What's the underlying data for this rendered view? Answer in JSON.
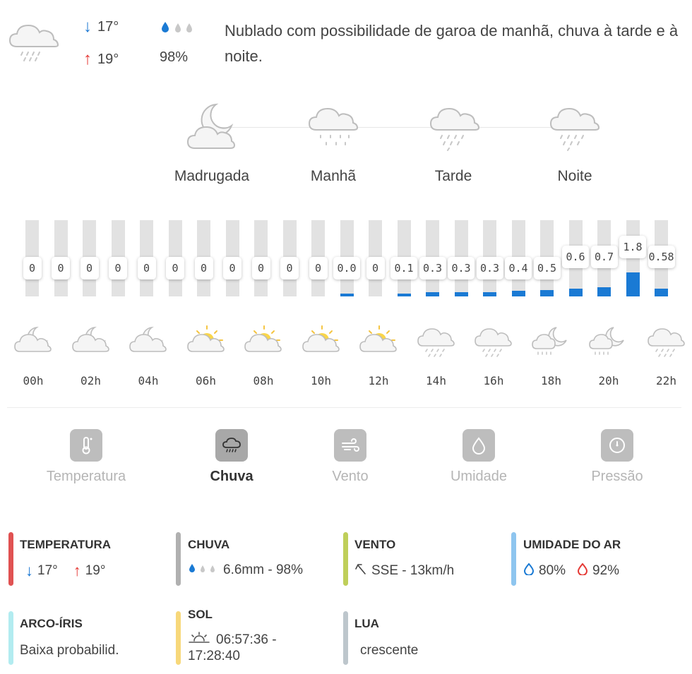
{
  "summary": {
    "min_temp": "17°",
    "max_temp": "19°",
    "rain_probability": "98%",
    "description": "Nublado com possibilidade de garoa de manhã, chuva à tarde e à noite."
  },
  "periods": [
    {
      "label": "Madrugada",
      "icon": "moon-cloud-icon"
    },
    {
      "label": "Manhã",
      "icon": "drizzle-icon"
    },
    {
      "label": "Tarde",
      "icon": "rain-icon"
    },
    {
      "label": "Noite",
      "icon": "rain-icon"
    }
  ],
  "rain_chart": {
    "values": [
      "0",
      "0",
      "0",
      "0",
      "0",
      "0",
      "0",
      "0",
      "0",
      "0",
      "0",
      "0.0",
      "0",
      "0.1",
      "0.3",
      "0.3",
      "0.3",
      "0.4",
      "0.5",
      "0.6",
      "0.7",
      "1.8",
      "0.58"
    ],
    "amounts": [
      0,
      0,
      0,
      0,
      0,
      0,
      0,
      0,
      0,
      0,
      0,
      0.05,
      0,
      0.1,
      0.3,
      0.3,
      0.3,
      0.4,
      0.5,
      0.6,
      0.7,
      1.8,
      0.58
    ]
  },
  "hours": [
    {
      "label": "00h",
      "icon": "moon-cloud-icon"
    },
    {
      "label": "02h",
      "icon": "moon-cloud-icon"
    },
    {
      "label": "04h",
      "icon": "moon-cloud-icon"
    },
    {
      "label": "06h",
      "icon": "sun-cloud-icon"
    },
    {
      "label": "08h",
      "icon": "sun-cloud-icon"
    },
    {
      "label": "10h",
      "icon": "sun-cloud-icon"
    },
    {
      "label": "12h",
      "icon": "sun-cloud-icon"
    },
    {
      "label": "14h",
      "icon": "rain-icon"
    },
    {
      "label": "16h",
      "icon": "rain-icon"
    },
    {
      "label": "18h",
      "icon": "moon-rain-icon"
    },
    {
      "label": "20h",
      "icon": "moon-rain-icon"
    },
    {
      "label": "22h",
      "icon": "rain-icon"
    }
  ],
  "tabs": [
    {
      "label": "Temperatura",
      "icon": "thermometer-icon",
      "active": false
    },
    {
      "label": "Chuva",
      "icon": "rain-cloud-icon",
      "active": true
    },
    {
      "label": "Vento",
      "icon": "wind-icon",
      "active": false
    },
    {
      "label": "Umidade",
      "icon": "drop-icon",
      "active": false
    },
    {
      "label": "Pressão",
      "icon": "gauge-icon",
      "active": false
    }
  ],
  "info": {
    "temperature": {
      "title": "TEMPERATURA",
      "min": "17°",
      "max": "19°",
      "color": "#e05252"
    },
    "rain": {
      "title": "CHUVA",
      "value": "6.6mm - 98%",
      "color": "#b0b0b0"
    },
    "wind": {
      "title": "VENTO",
      "value": "SSE - 13km/h",
      "color": "#bfcf5a"
    },
    "humidity": {
      "title": "UMIDADE DO AR",
      "min": "80%",
      "max": "92%",
      "color": "#8ec5ef"
    },
    "rainbow": {
      "title": "ARCO-ÍRIS",
      "value": "Baixa probabilid.",
      "color": "#b2ecf0"
    },
    "sun": {
      "title": "SOL",
      "value_line1": "06:57:36 -",
      "value_line2": "17:28:40",
      "color": "#f7d87a"
    },
    "moon": {
      "title": "LUA",
      "value": "crescente",
      "color": "#bdc6cc"
    }
  }
}
